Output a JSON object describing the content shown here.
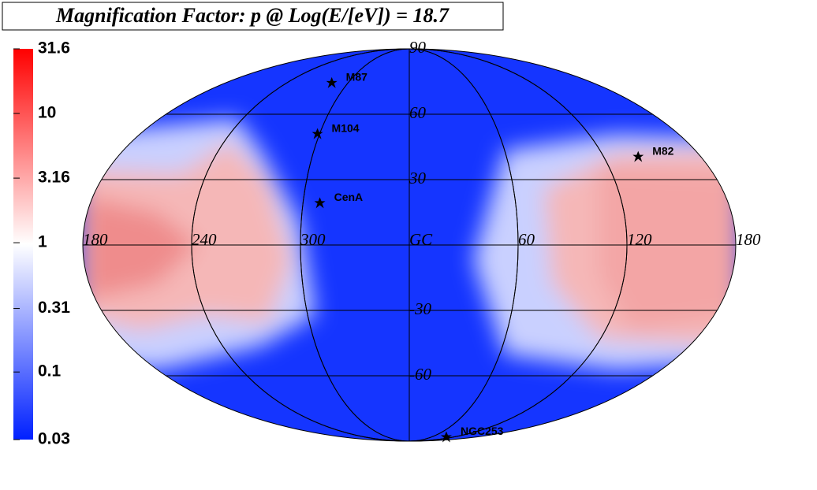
{
  "chart_data": {
    "type": "skymap",
    "title": "Magnification Factor: p @ Log(E/[eV]) = 18.7",
    "colorbar": {
      "lim": [
        0.03,
        31.6
      ],
      "log": true,
      "ticks": [
        31.6,
        10,
        3.16,
        1,
        0.31,
        0.1,
        0.03
      ]
    },
    "xlim": [
      180,
      -180
    ],
    "xticks": [
      180,
      120,
      60,
      {
        "value": 0,
        "label": "GC"
      },
      300,
      240,
      {
        "value": 180,
        "label": "180"
      }
    ],
    "ylim": [
      -90,
      90
    ],
    "yticks": [
      90,
      60,
      30,
      -30,
      -60
    ],
    "sources": [
      {
        "name": "M87",
        "l": 283.8,
        "b": 74.5
      },
      {
        "name": "M104",
        "l": 298.5,
        "b": 51.1
      },
      {
        "name": "M82",
        "l": 141.4,
        "b": 40.6
      },
      {
        "name": "CenA",
        "l": 309.5,
        "b": 19.4
      },
      {
        "name": "NGC253",
        "l": 97.4,
        "b": -88.0
      }
    ]
  }
}
